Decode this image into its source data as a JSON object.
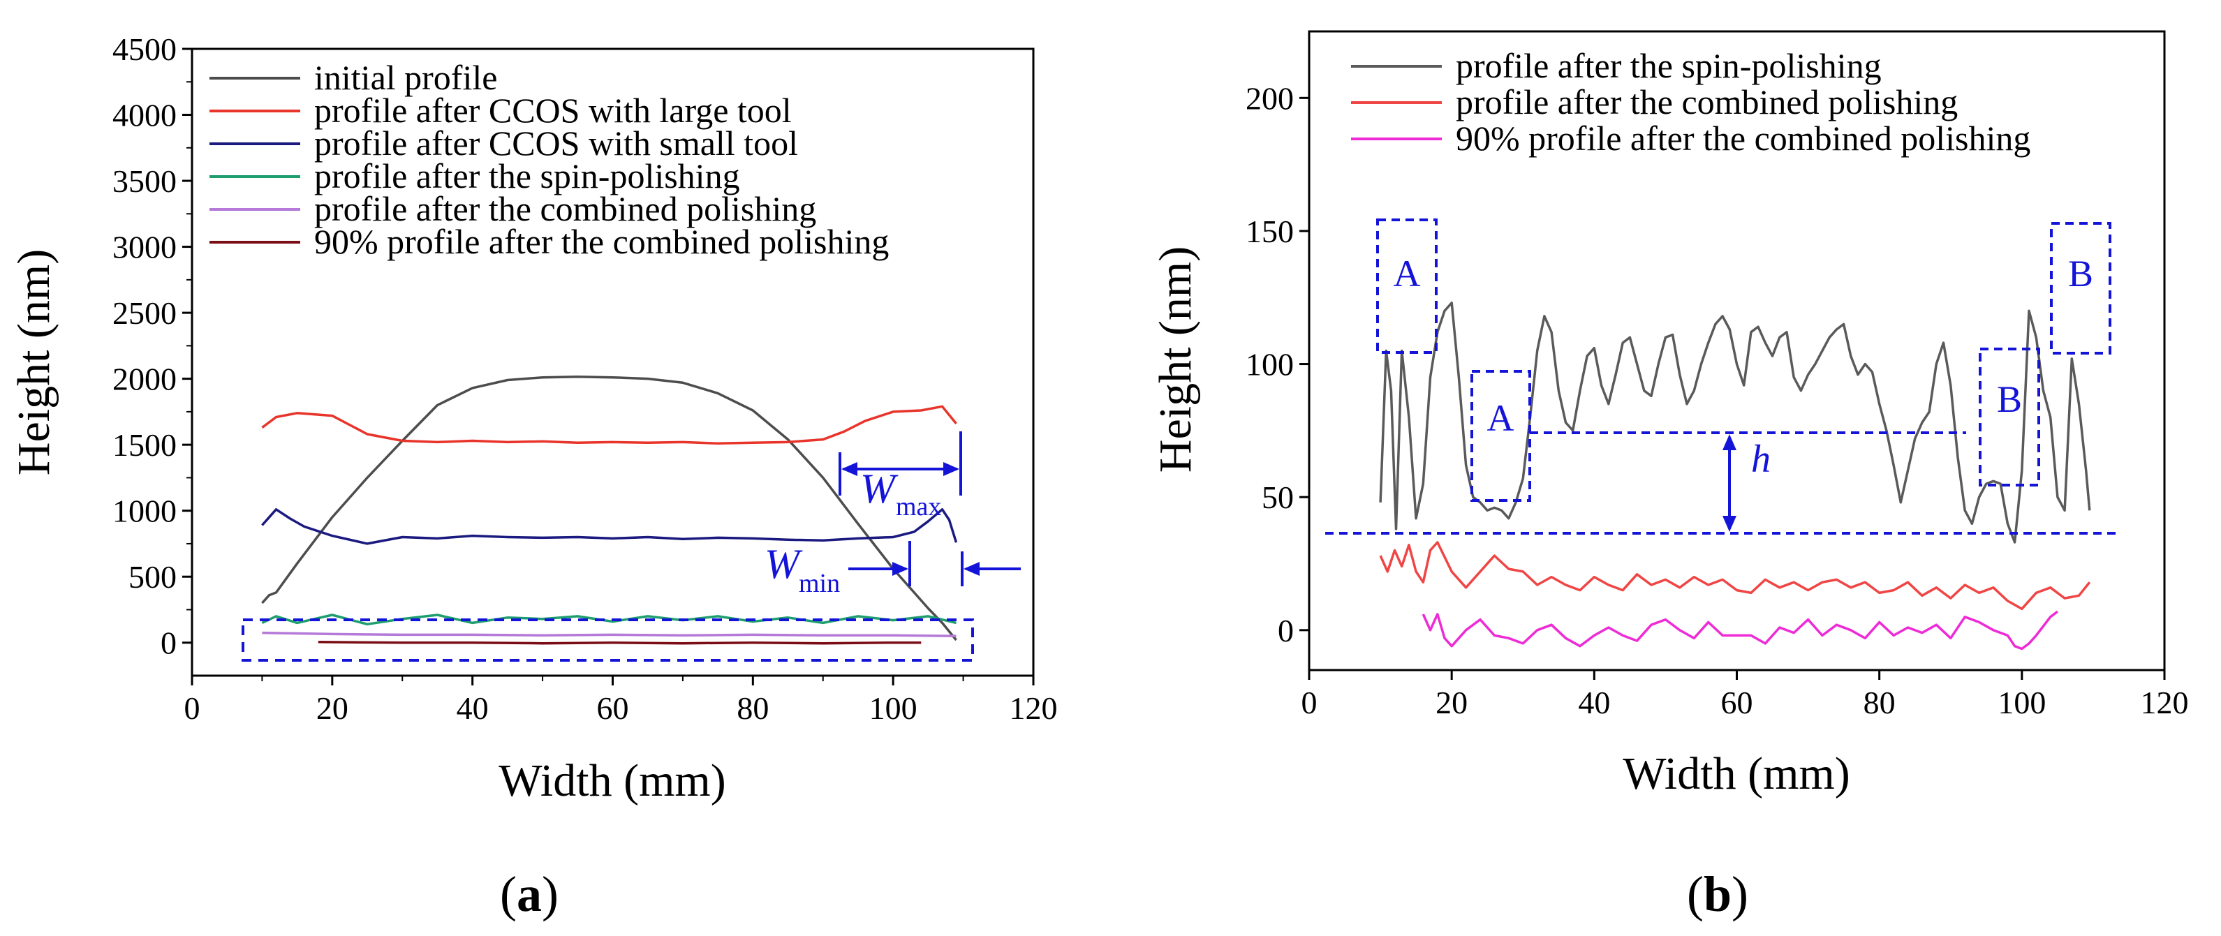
{
  "panels": [
    {
      "label_prefix": "(",
      "label_letter": "a",
      "label_suffix": ")"
    },
    {
      "label_prefix": "(",
      "label_letter": "b",
      "label_suffix": ")"
    }
  ],
  "annotations": {
    "a": {
      "w_max_base": "W",
      "w_max_sub": "max",
      "w_min_base": "W",
      "w_min_sub": "min"
    },
    "b": {
      "A1": "A",
      "A2": "A",
      "B1": "B",
      "B2": "B",
      "h": "h"
    }
  },
  "colors": {
    "annotation": "#1414d8"
  },
  "chart_data": [
    {
      "type": "line",
      "xlabel": "Width (mm)",
      "ylabel": "Height (nm)",
      "xlim": [
        0,
        120
      ],
      "ylim": [
        -250,
        4500
      ],
      "xticks": [
        0,
        20,
        40,
        60,
        80,
        100,
        120
      ],
      "yticks": [
        0,
        500,
        1000,
        1500,
        2000,
        2500,
        3000,
        3500,
        4000,
        4500
      ],
      "grid": false,
      "legend_position": "top-left",
      "series": [
        {
          "name": "initial profile",
          "color": "#4d4d4d",
          "x": [
            10,
            11,
            12,
            15,
            20,
            25,
            30,
            35,
            40,
            45,
            50,
            55,
            60,
            65,
            70,
            75,
            80,
            85,
            90,
            95,
            100,
            103,
            105,
            107,
            109
          ],
          "y": [
            300,
            360,
            380,
            600,
            950,
            1250,
            1530,
            1800,
            1930,
            1990,
            2010,
            2015,
            2010,
            2000,
            1970,
            1890,
            1760,
            1540,
            1250,
            900,
            560,
            380,
            260,
            150,
            20
          ]
        },
        {
          "name": "profile after CCOS with large tool",
          "color": "#e8342a",
          "x": [
            10,
            12,
            15,
            20,
            25,
            30,
            35,
            40,
            45,
            50,
            55,
            60,
            65,
            70,
            75,
            80,
            85,
            90,
            93,
            96,
            100,
            104,
            107,
            109
          ],
          "y": [
            1630,
            1710,
            1740,
            1720,
            1580,
            1530,
            1520,
            1530,
            1520,
            1525,
            1515,
            1520,
            1515,
            1520,
            1510,
            1515,
            1520,
            1540,
            1600,
            1680,
            1750,
            1760,
            1790,
            1660
          ]
        },
        {
          "name": "profile after CCOS with small tool",
          "color": "#1a1a80",
          "x": [
            10,
            12,
            14,
            16,
            20,
            25,
            30,
            35,
            40,
            45,
            50,
            55,
            60,
            65,
            70,
            75,
            80,
            85,
            90,
            95,
            100,
            103,
            105,
            107,
            108,
            109
          ],
          "y": [
            890,
            1010,
            940,
            880,
            810,
            750,
            800,
            790,
            810,
            800,
            795,
            800,
            790,
            800,
            785,
            795,
            790,
            780,
            775,
            790,
            800,
            840,
            920,
            1010,
            930,
            760
          ]
        },
        {
          "name": "profile after the spin-polishing",
          "color": "#1e9e6e",
          "x": [
            10,
            12,
            15,
            20,
            25,
            30,
            35,
            40,
            45,
            50,
            55,
            60,
            65,
            70,
            75,
            80,
            85,
            90,
            95,
            100,
            105,
            109
          ],
          "y": [
            150,
            200,
            150,
            210,
            140,
            180,
            210,
            150,
            190,
            180,
            200,
            160,
            200,
            170,
            200,
            160,
            190,
            150,
            200,
            170,
            200,
            150
          ]
        },
        {
          "name": "profile after the combined polishing",
          "color": "#b479d9",
          "x": [
            10,
            15,
            20,
            30,
            40,
            50,
            60,
            70,
            80,
            90,
            100,
            109
          ],
          "y": [
            75,
            70,
            65,
            60,
            60,
            55,
            60,
            55,
            60,
            55,
            55,
            50
          ]
        },
        {
          "name": "90% profile after the combined polishing",
          "color": "#7a0d16",
          "x": [
            18,
            30,
            40,
            50,
            60,
            70,
            80,
            90,
            100,
            104
          ],
          "y": [
            5,
            0,
            0,
            -5,
            0,
            -5,
            0,
            -5,
            0,
            0
          ]
        }
      ]
    },
    {
      "type": "line",
      "xlabel": "Width (mm)",
      "ylabel": "Height (nm)",
      "xlim": [
        0,
        120
      ],
      "ylim": [
        -15,
        225
      ],
      "xticks": [
        0,
        20,
        40,
        60,
        80,
        100,
        120
      ],
      "yticks": [
        0,
        50,
        100,
        150,
        200
      ],
      "grid": false,
      "legend_position": "top",
      "series": [
        {
          "name": "profile after the spin-polishing",
          "color": "#5a5a5a",
          "x": [
            10,
            10.8,
            11.5,
            12.2,
            13,
            14,
            15,
            16,
            17,
            18,
            19,
            20,
            21,
            22,
            23,
            24,
            25,
            26,
            27,
            28,
            29,
            30,
            31,
            32,
            33,
            34,
            35,
            36,
            37,
            38,
            39,
            40,
            41,
            42,
            43,
            44,
            45,
            46,
            47,
            48,
            49,
            50,
            51,
            52,
            53,
            54,
            55,
            56,
            57,
            58,
            59,
            60,
            61,
            62,
            63,
            64,
            65,
            66,
            67,
            68,
            69,
            70,
            71,
            72,
            73,
            74,
            75,
            76,
            77,
            78,
            79,
            80,
            81,
            82,
            83,
            84,
            85,
            86,
            87,
            88,
            89,
            90,
            91,
            92,
            93,
            94,
            95,
            96,
            97,
            98,
            99,
            100,
            101,
            102,
            103,
            104,
            105,
            106,
            107,
            108,
            109,
            109.5
          ],
          "y": [
            48,
            105,
            90,
            38,
            105,
            80,
            42,
            55,
            95,
            112,
            120,
            123,
            95,
            62,
            50,
            48,
            45,
            46,
            45,
            42,
            48,
            57,
            80,
            105,
            118,
            112,
            90,
            78,
            75,
            90,
            103,
            106,
            92,
            85,
            96,
            108,
            110,
            100,
            90,
            88,
            100,
            110,
            111,
            96,
            85,
            90,
            100,
            108,
            115,
            118,
            113,
            100,
            92,
            112,
            114,
            108,
            103,
            110,
            112,
            95,
            90,
            96,
            100,
            105,
            110,
            113,
            115,
            103,
            96,
            100,
            97,
            85,
            75,
            62,
            48,
            60,
            72,
            78,
            82,
            100,
            108,
            92,
            65,
            45,
            40,
            50,
            55,
            56,
            55,
            40,
            33,
            60,
            120,
            110,
            90,
            80,
            50,
            45,
            102,
            85,
            60,
            45
          ]
        },
        {
          "name": "profile after the combined polishing",
          "color": "#f04545",
          "x": [
            10,
            11,
            12,
            13,
            14,
            15,
            16,
            17,
            18,
            20,
            22,
            24,
            26,
            28,
            30,
            32,
            34,
            36,
            38,
            40,
            42,
            44,
            46,
            48,
            50,
            52,
            54,
            56,
            58,
            60,
            62,
            64,
            66,
            68,
            70,
            72,
            74,
            76,
            78,
            80,
            82,
            84,
            86,
            88,
            90,
            92,
            94,
            96,
            98,
            100,
            102,
            104,
            106,
            108,
            109.5
          ],
          "y": [
            28,
            22,
            30,
            24,
            32,
            22,
            18,
            30,
            33,
            22,
            16,
            22,
            28,
            23,
            22,
            17,
            20,
            17,
            15,
            20,
            17,
            15,
            21,
            17,
            19,
            16,
            20,
            17,
            19,
            15,
            14,
            19,
            16,
            18,
            15,
            18,
            19,
            16,
            18,
            14,
            15,
            18,
            13,
            16,
            12,
            17,
            14,
            16,
            11,
            8,
            14,
            16,
            12,
            13,
            18
          ]
        },
        {
          "name": "90% profile after the combined polishing",
          "color": "#ee2bd6",
          "x": [
            16,
            17,
            18,
            19,
            20,
            22,
            24,
            26,
            28,
            30,
            32,
            34,
            36,
            38,
            40,
            42,
            44,
            46,
            48,
            50,
            52,
            54,
            56,
            58,
            60,
            62,
            64,
            66,
            68,
            70,
            72,
            74,
            76,
            78,
            80,
            82,
            84,
            86,
            88,
            90,
            92,
            94,
            96,
            98,
            99,
            100,
            101,
            102,
            104,
            105
          ],
          "y": [
            6,
            0,
            6,
            -3,
            -6,
            0,
            4,
            -2,
            -3,
            -5,
            0,
            2,
            -3,
            -6,
            -2,
            1,
            -2,
            -4,
            2,
            4,
            0,
            -3,
            3,
            -2,
            -2,
            -2,
            -5,
            1,
            -1,
            4,
            -2,
            2,
            0,
            -3,
            3,
            -2,
            1,
            -1,
            2,
            -3,
            5,
            3,
            0,
            -2,
            -6,
            -7,
            -5,
            -2,
            5,
            7
          ]
        }
      ]
    }
  ]
}
